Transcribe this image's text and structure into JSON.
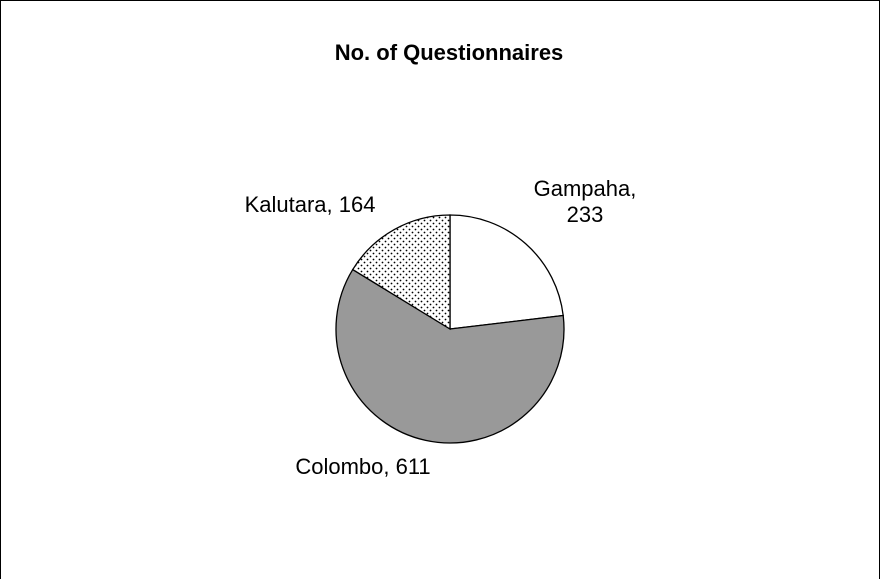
{
  "chart_data": {
    "type": "pie",
    "title": "No. of Questionnaires",
    "slices": [
      {
        "label": "Gampaha",
        "value": 233,
        "display": [
          "Gampaha,",
          "233"
        ],
        "color": "#ffffff",
        "pattern": "none"
      },
      {
        "label": "Colombo",
        "value": 611,
        "display": [
          "Colombo, 611"
        ],
        "color": "#999999",
        "pattern": "none"
      },
      {
        "label": "Kalutara",
        "value": 164,
        "display": [
          "Kalutara, 164"
        ],
        "color": "#ffffff",
        "pattern": "dots"
      }
    ],
    "legend": "none",
    "start_angle": "12 o'clock",
    "direction": "clockwise"
  }
}
